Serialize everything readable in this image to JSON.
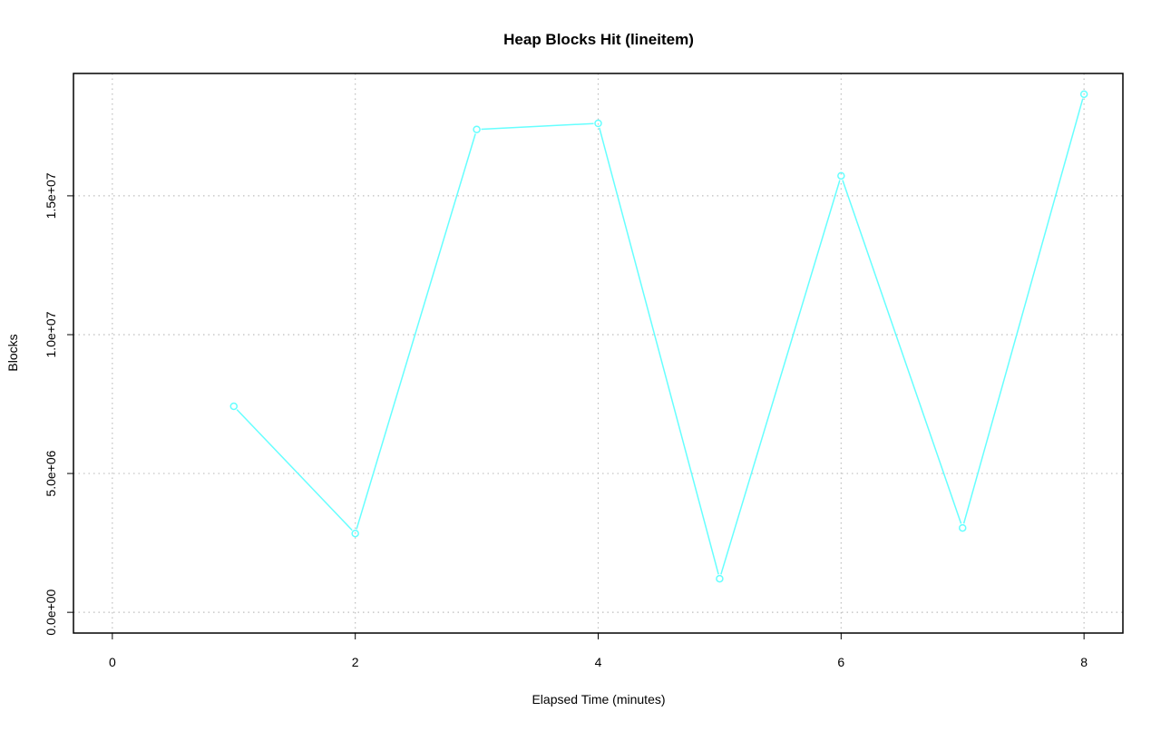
{
  "chart_data": {
    "type": "line",
    "title": "Heap Blocks Hit (lineitem)",
    "xlabel": "Elapsed Time (minutes)",
    "ylabel": "Blocks",
    "x": [
      1,
      2,
      3,
      4,
      5,
      6,
      7,
      8
    ],
    "series": [
      {
        "values": [
          7420000,
          2840000,
          17390000,
          17610000,
          1210000,
          15720000,
          3040000,
          18660000
        ],
        "color": "#66ffff",
        "marker": "open-circle"
      }
    ],
    "xlim": [
      0,
      8
    ],
    "ylim": [
      0,
      18660000
    ],
    "xticks": [
      0,
      2,
      4,
      6,
      8
    ],
    "xtick_labels": [
      "0",
      "2",
      "4",
      "6",
      "8"
    ],
    "yticks": [
      0,
      5000000,
      10000000,
      15000000
    ],
    "ytick_labels": [
      "0.0e+00",
      "5.0e+06",
      "1.0e+07",
      "1.5e+07"
    ],
    "grid": true,
    "grid_style": "dotted",
    "grid_color": "#bebebe"
  }
}
